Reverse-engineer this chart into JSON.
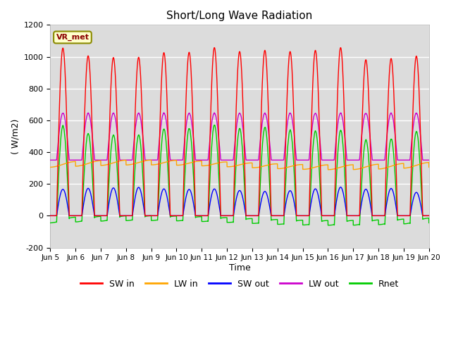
{
  "title": "Short/Long Wave Radiation",
  "xlabel": "Time",
  "ylabel": "( W/m2)",
  "ylim": [
    -200,
    1200
  ],
  "xlim": [
    0,
    15
  ],
  "yticks": [
    -200,
    0,
    200,
    400,
    600,
    800,
    1000,
    1200
  ],
  "num_days": 15,
  "annotation": "VR_met",
  "bg_color": "#dcdcdc",
  "fig_bg_color": "#ffffff",
  "colors": {
    "SW_in": "#ff0000",
    "LW_in": "#ffa500",
    "SW_out": "#0000ff",
    "LW_out": "#cc00cc",
    "Rnet": "#00cc00"
  },
  "xtick_labels": [
    "Jun 5",
    "Jun 6",
    "Jun 7",
    "Jun 8",
    "Jun 9",
    "Jun 10",
    "Jun 11",
    "Jun 12",
    "Jun 13",
    "Jun 14",
    "Jun 15",
    "Jun 16",
    "Jun 17",
    "Jun 18",
    "Jun 19",
    "Jun 20"
  ],
  "legend_labels": [
    "SW in",
    "LW in",
    "SW out",
    "LW out",
    "Rnet"
  ]
}
